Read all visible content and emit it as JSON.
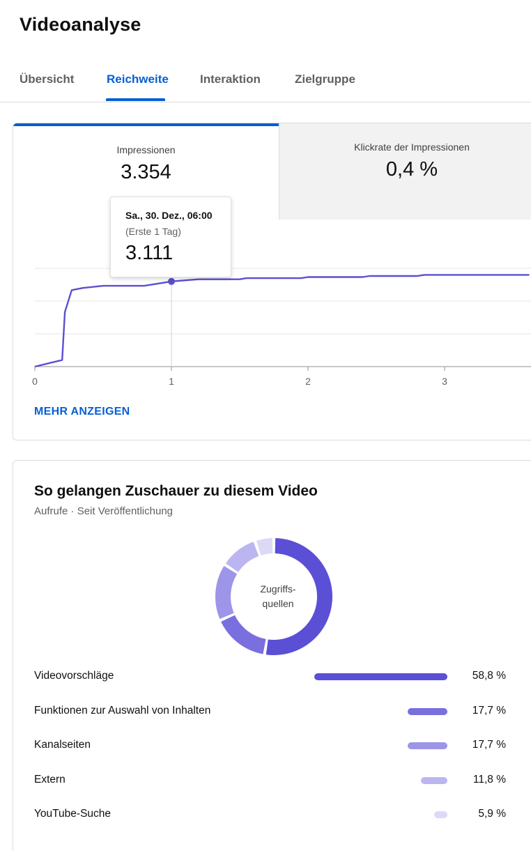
{
  "title": "Videoanalyse",
  "tabs": [
    {
      "label": "Übersicht"
    },
    {
      "label": "Reichweite"
    },
    {
      "label": "Interaktion"
    },
    {
      "label": "Zielgruppe"
    }
  ],
  "metrics": [
    {
      "label": "Impressionen",
      "value": "3.354"
    },
    {
      "label": "Klickrate der Impressionen",
      "value": "0,4 %"
    }
  ],
  "tooltip": {
    "date": "Sa., 30. Dez., 06:00",
    "sub": "(Erste 1 Tag)",
    "value": "3.111"
  },
  "more_link": "MEHR ANZEIGEN",
  "chart_data": {
    "type": "line",
    "series": [
      {
        "x": [
          0,
          0.2,
          0.22,
          0.27,
          0.35,
          0.5,
          0.6,
          0.8,
          0.9,
          1.0,
          1.1,
          1.2,
          1.5,
          1.55,
          1.95,
          2.0,
          2.4,
          2.45,
          2.8,
          2.85,
          3.62
        ],
        "y": [
          0,
          30,
          250,
          350,
          360,
          370,
          370,
          370,
          380,
          390,
          395,
          400,
          400,
          405,
          405,
          410,
          410,
          415,
          415,
          420,
          420
        ]
      }
    ],
    "xlim": [
      0,
      3.62
    ],
    "ylim": [
      0,
      450
    ],
    "xticks": [
      "0",
      "1",
      "2",
      "3"
    ],
    "highlight": {
      "x": 1.0
    },
    "line_color": "#5a4fcf",
    "grid": true
  },
  "traffic": {
    "title": "So gelangen Zuschauer zu diesem Video",
    "subtitle": "Aufrufe · Seit Veröffentlichung",
    "center_label_line1": "Zugriffs-",
    "center_label_line2": "quellen",
    "sources": [
      {
        "label": "Videovorschläge",
        "pct": "58,8 %",
        "value": 58.8,
        "color": "#5b4fd6"
      },
      {
        "label": "Funktionen zur Auswahl von Inhalten",
        "pct": "17,7 %",
        "value": 17.7,
        "color": "#7a6fdf"
      },
      {
        "label": "Kanalseiten",
        "pct": "17,7 %",
        "value": 17.7,
        "color": "#9d95e8"
      },
      {
        "label": "Extern",
        "pct": "11,8 %",
        "value": 11.8,
        "color": "#bcb6f0"
      },
      {
        "label": "YouTube-Suche",
        "pct": "5,9 %",
        "value": 5.9,
        "color": "#dcd9f7"
      }
    ]
  }
}
